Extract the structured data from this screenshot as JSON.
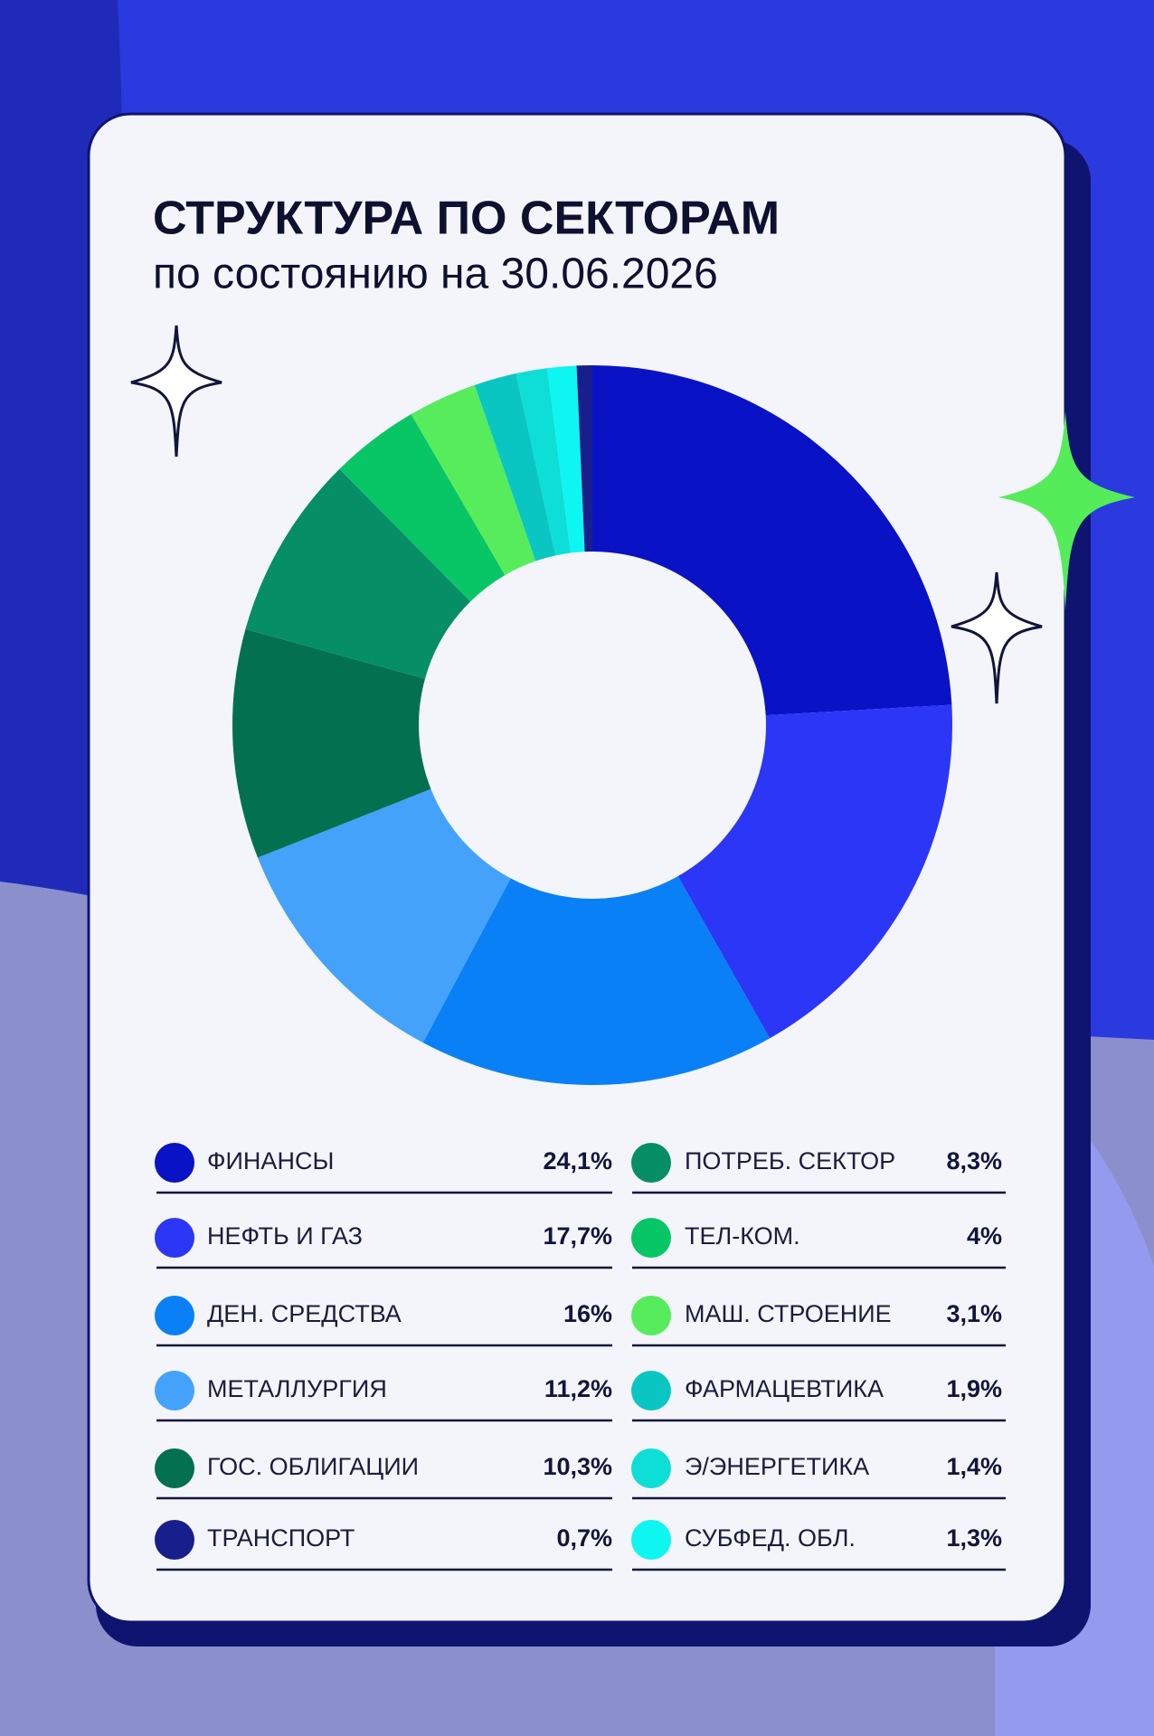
{
  "chart_data": {
    "type": "pie",
    "donut": true,
    "title": "СТРУКТУРА ПО СЕКТОРАМ",
    "subtitle": "по состоянию на 30.06.2026",
    "categories": [
      "ФИНАНСЫ",
      "НЕФТЬ И ГАЗ",
      "ДЕН. СРЕДСТВА",
      "МЕТАЛЛУРГИЯ",
      "ГОС. ОБЛИГАЦИИ",
      "ПОТРЕБ. СЕКТОР",
      "ТЕЛ-КОМ.",
      "МАШ. СТРОЕНИЕ",
      "ФАРМАЦЕВТИКА",
      "Э/ЭНЕРГЕТИКА",
      "СУБФЕД. ОБЛ.",
      "ТРАНСПОРТ"
    ],
    "values": [
      24.1,
      17.7,
      16,
      11.2,
      10.3,
      8.3,
      4,
      3.1,
      1.9,
      1.4,
      1.3,
      0.7
    ],
    "value_labels": [
      "24,1%",
      "17,7%",
      "16%",
      "11,2%",
      "10,3%",
      "8,3%",
      "4%",
      "3,1%",
      "1,9%",
      "1,4%",
      "1,3%",
      "0,7%"
    ],
    "colors": [
      "#0a12c6",
      "#2b36f6",
      "#0a80f6",
      "#44a2fb",
      "#03704f",
      "#068e67",
      "#08c566",
      "#56ec5b",
      "#0ac6c2",
      "#0ddfd6",
      "#0ef6f1",
      "#181f8c"
    ]
  }
}
